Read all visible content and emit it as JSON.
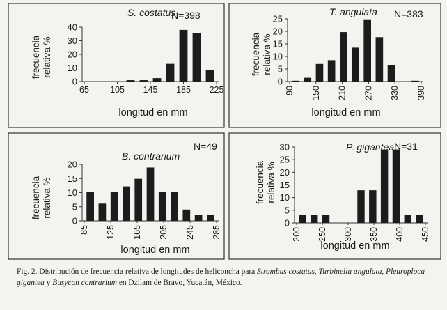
{
  "chart_data": [
    {
      "type": "bar",
      "species": "S. costatus",
      "n_label": "N=398",
      "xlabel": "longitud en mm",
      "ylabel": [
        "frecuencia",
        "relativa %"
      ],
      "x_ticks": [
        "65",
        "105",
        "145",
        "185",
        "225"
      ],
      "y_ticks": [
        "0",
        "10",
        "20",
        "30",
        "40"
      ],
      "ylim": [
        0,
        40
      ],
      "values": [
        0,
        0,
        0,
        1,
        1,
        2.5,
        13,
        38,
        35.5,
        8.5
      ],
      "grid": false
    },
    {
      "type": "bar",
      "species": "T. angulata",
      "n_label": "N=383",
      "xlabel": "longitud en mm",
      "ylabel": [
        "frecuencia",
        "relativa %"
      ],
      "x_ticks": [
        "90",
        "150",
        "210",
        "270",
        "330",
        "390"
      ],
      "y_ticks": [
        "0",
        "5",
        "10",
        "15",
        "20",
        "25"
      ],
      "ylim": [
        0,
        25
      ],
      "values": [
        0.3,
        1.5,
        7,
        8.5,
        19.7,
        13.5,
        24.8,
        17.7,
        6.5,
        0,
        0.3
      ],
      "grid": false
    },
    {
      "type": "bar",
      "species": "B. contrarium",
      "n_label": "N=49",
      "xlabel": "longitud en mm",
      "ylabel": [
        "frecuencia",
        "relativa %"
      ],
      "x_ticks": [
        "85",
        "125",
        "165",
        "205",
        "245",
        "285"
      ],
      "y_ticks": [
        "0",
        "5",
        "10",
        "15",
        "20"
      ],
      "ylim": [
        0,
        20
      ],
      "values": [
        10.2,
        6.1,
        10.2,
        12.2,
        14.9,
        18.9,
        10.2,
        10.2,
        4,
        2,
        2
      ],
      "grid": false
    },
    {
      "type": "bar",
      "species": "P. gigantea",
      "n_label": "N=31",
      "xlabel": "longitud en mm",
      "ylabel": [
        "frecuencia",
        "relativa %"
      ],
      "x_ticks": [
        "200",
        "250",
        "300",
        "350",
        "400",
        "450"
      ],
      "y_ticks": [
        "0",
        "5",
        "10",
        "15",
        "20",
        "25",
        "30"
      ],
      "ylim": [
        0,
        30
      ],
      "values": [
        3.2,
        3.2,
        3.2,
        0,
        0,
        12.9,
        12.9,
        29,
        29,
        3.2,
        3.2
      ],
      "grid": false
    }
  ],
  "caption": {
    "lead": "Fig. 2. Distribución de frecuencia relativa de longitudes de heliconcha para ",
    "sp1": "Strombus costatus",
    "sep1": ", ",
    "sp2": "Turbinella angulata",
    "sep2": ", ",
    "sp3": "Pleuroploca gigantea",
    "sep3": " y ",
    "sp4": "Busycon contrarium",
    "tail": " en Dzilam de Bravo, Yucatán, México."
  },
  "colors": {
    "bar": "#1c1c1c",
    "frame": "#333333",
    "background": "#f4f3ef"
  }
}
